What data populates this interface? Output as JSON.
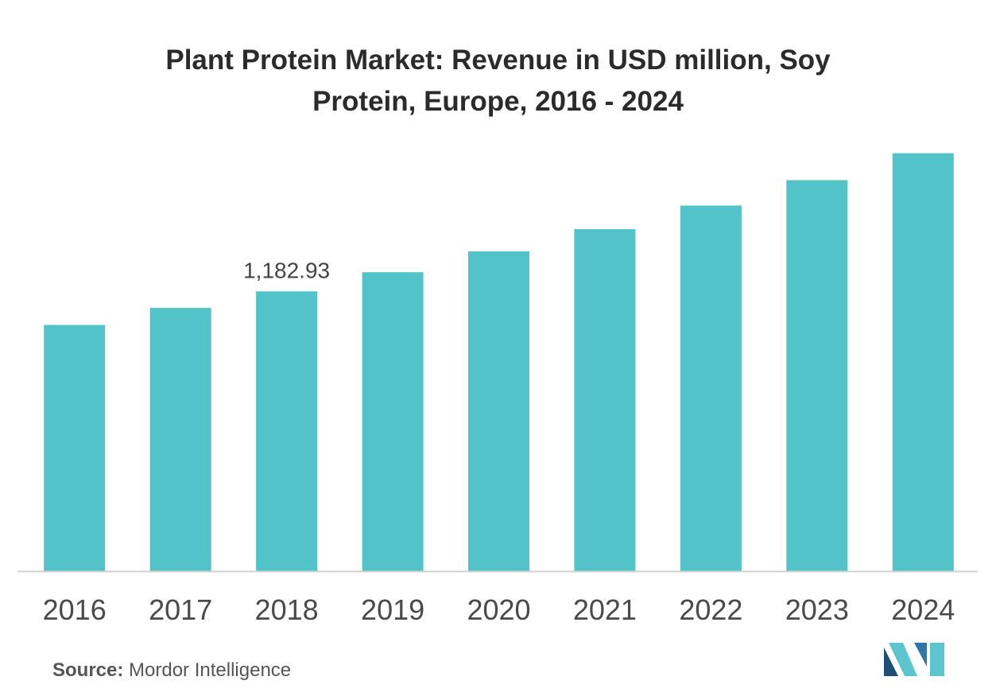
{
  "chart_data": {
    "type": "bar",
    "title_line1": "Plant Protein Market: Revenue in USD million, Soy",
    "title_line2": "Protein, Europe, 2016 - 2024",
    "categories": [
      "2016",
      "2017",
      "2018",
      "2019",
      "2020",
      "2021",
      "2022",
      "2023",
      "2024"
    ],
    "values": [
      1041,
      1113,
      1182.93,
      1264,
      1352,
      1446,
      1546,
      1653,
      1767
    ],
    "data_labels": [
      {
        "category": "2018",
        "text": "1,182.93"
      }
    ],
    "bar_color": "#52c3c8",
    "axis_color": "#d0d0d0",
    "ylim": [
      0,
      1860
    ],
    "grid": false,
    "legend": "none"
  },
  "footer": {
    "source_label": "Source:",
    "source_text": " Mordor Intelligence"
  },
  "logo": {
    "icon": "mordor-intelligence-logo-icon",
    "colors": [
      "#1f4e79",
      "#5cc6cf",
      "#2d78a8"
    ]
  }
}
